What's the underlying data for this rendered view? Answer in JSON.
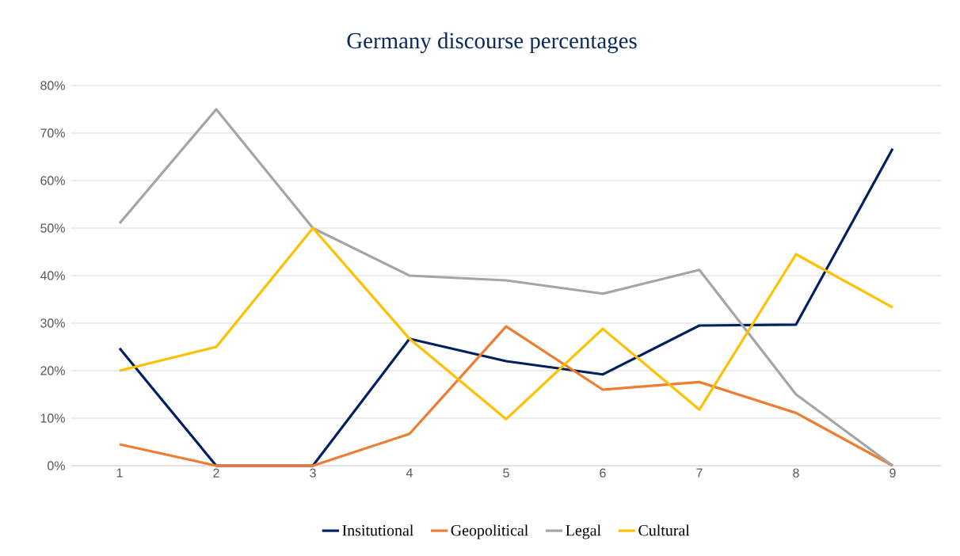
{
  "chart_data": {
    "type": "line",
    "title": "Germany discourse percentages",
    "categories": [
      "1",
      "2",
      "3",
      "4",
      "5",
      "6",
      "7",
      "8",
      "9"
    ],
    "series": [
      {
        "name": "Insitutional",
        "color": "#002060",
        "values": [
          24.7,
          0,
          0,
          26.7,
          22,
          19.2,
          29.5,
          29.7,
          66.7
        ]
      },
      {
        "name": "Geopolitical",
        "color": "#ed7d31",
        "values": [
          4.5,
          0,
          0,
          6.7,
          29.3,
          16,
          17.6,
          11.1,
          0
        ]
      },
      {
        "name": "Legal",
        "color": "#a5a5a5",
        "values": [
          51,
          75,
          50,
          40,
          39,
          36.2,
          41.2,
          15,
          0
        ]
      },
      {
        "name": "Cultural",
        "color": "#ffc000",
        "values": [
          20,
          25,
          50,
          26.7,
          9.8,
          28.8,
          11.8,
          44.5,
          33.3
        ]
      }
    ],
    "ylim": [
      0,
      80
    ],
    "yticks": [
      {
        "value": 0,
        "label": "0%"
      },
      {
        "value": 10,
        "label": "10%"
      },
      {
        "value": 20,
        "label": "20%"
      },
      {
        "value": 30,
        "label": "30%"
      },
      {
        "value": 40,
        "label": "40%"
      },
      {
        "value": 50,
        "label": "50%"
      },
      {
        "value": 60,
        "label": "60%"
      },
      {
        "value": 70,
        "label": "70%"
      },
      {
        "value": 80,
        "label": "80%"
      }
    ],
    "grid": "y",
    "legend": "bottom",
    "marker": "none",
    "line_style": "solid"
  }
}
